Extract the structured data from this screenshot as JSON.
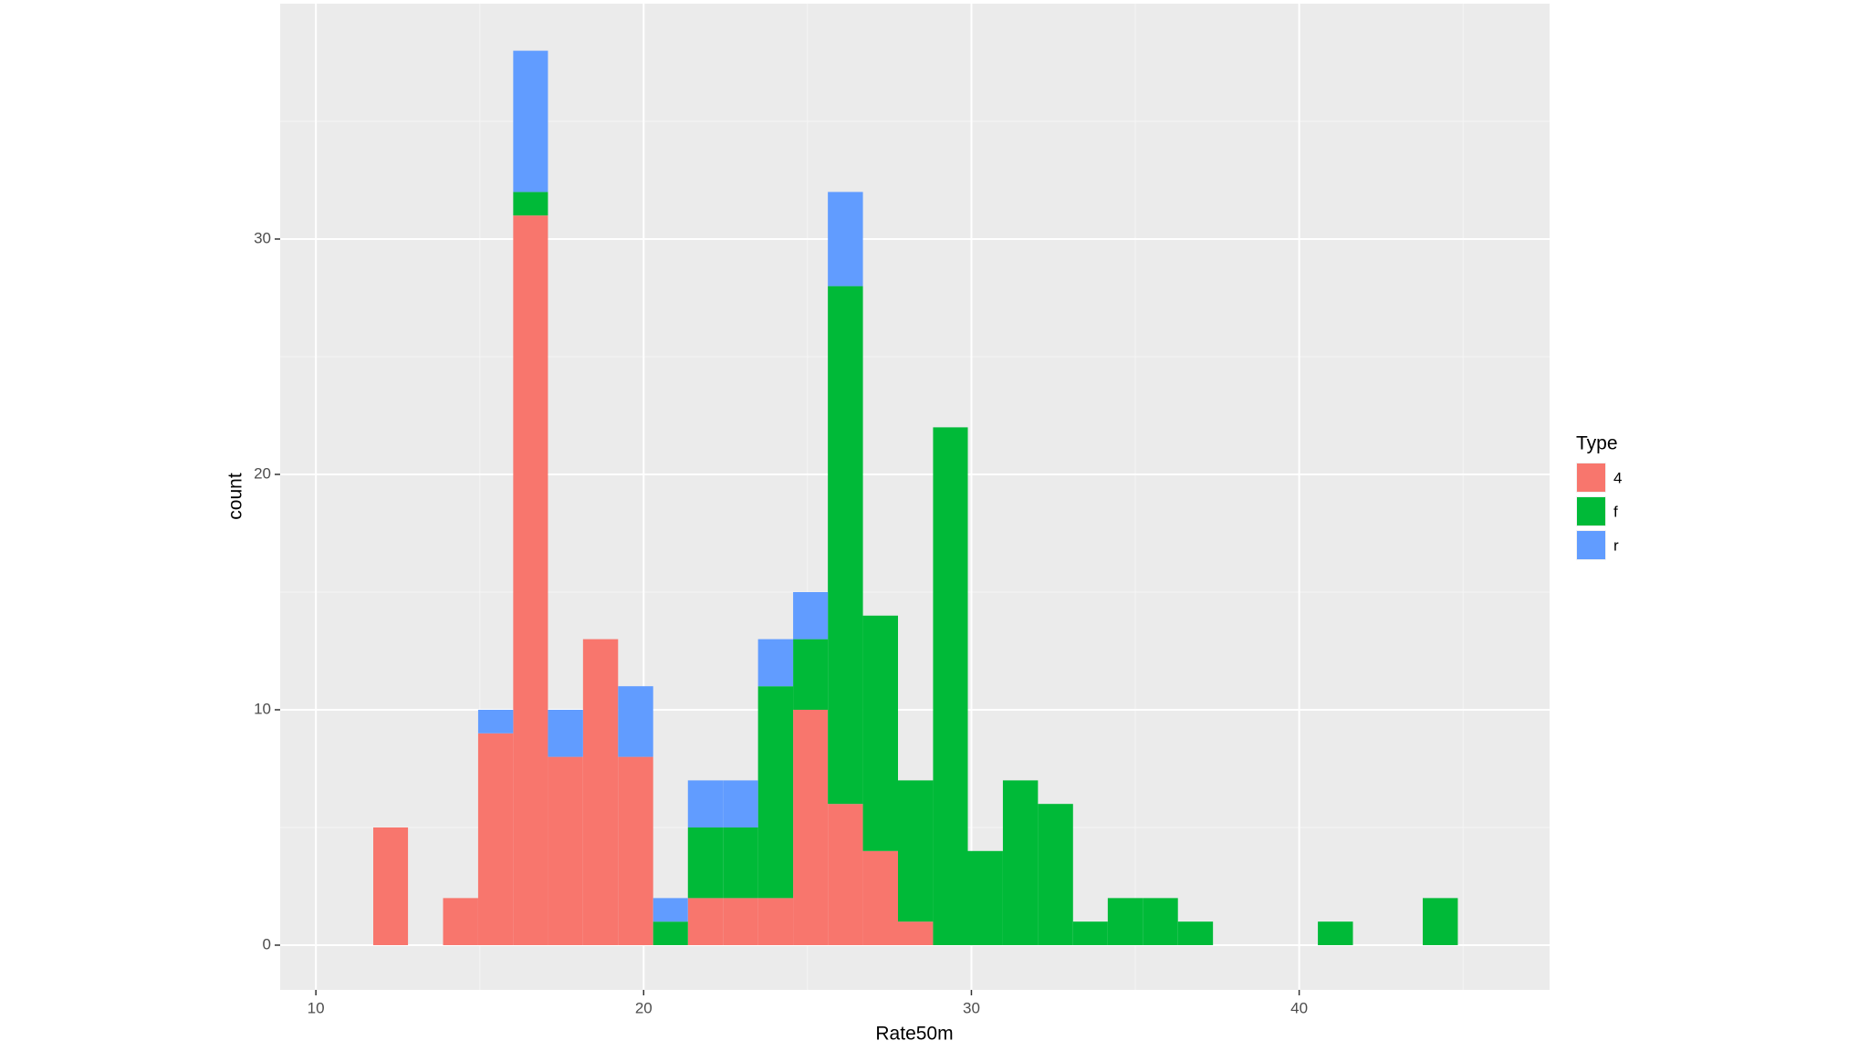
{
  "chart_data": {
    "type": "histogram",
    "x_label": "Rate50m",
    "y_label": "count",
    "legend_title": "Type",
    "legend": "right",
    "bins": [
      11.75,
      12.81,
      13.88,
      14.95,
      16.02,
      17.08,
      18.15,
      19.22,
      20.29,
      21.35,
      22.42,
      23.49,
      24.56,
      25.62,
      26.69,
      27.76,
      28.83,
      29.89,
      30.96,
      32.03,
      33.1,
      34.16,
      35.23,
      36.3,
      37.37,
      38.43,
      39.5,
      40.57,
      41.64,
      42.7,
      43.77,
      44.84
    ],
    "series": [
      {
        "name": "4",
        "color": "#F8766D",
        "values": [
          5,
          0,
          2,
          9,
          31,
          8,
          13,
          8,
          0,
          2,
          2,
          2,
          10,
          6,
          4,
          1,
          0,
          0,
          0,
          0,
          0,
          0,
          0,
          0,
          0,
          0,
          0,
          0,
          0,
          0,
          0
        ]
      },
      {
        "name": "f",
        "color": "#00BA38",
        "values": [
          0,
          0,
          0,
          0,
          1,
          0,
          0,
          0,
          1,
          3,
          3,
          9,
          3,
          22,
          10,
          6,
          22,
          4,
          7,
          6,
          1,
          2,
          2,
          1,
          0,
          0,
          0,
          1,
          0,
          0,
          2
        ]
      },
      {
        "name": "r",
        "color": "#619CFF",
        "values": [
          0,
          0,
          0,
          1,
          6,
          2,
          0,
          3,
          1,
          2,
          2,
          2,
          2,
          4,
          0,
          0,
          0,
          0,
          0,
          0,
          0,
          0,
          0,
          0,
          0,
          0,
          0,
          0,
          0,
          0,
          0
        ]
      }
    ],
    "xlim": [
      8.91,
      47.64
    ],
    "xticks": [
      10,
      20,
      30,
      40
    ],
    "xminor": [
      15,
      25,
      35,
      45
    ],
    "ylim": [
      -1.9,
      40
    ],
    "yticks": [
      0,
      10,
      20,
      30
    ],
    "yminor": [
      5,
      15,
      25,
      35
    ],
    "grid": true
  }
}
